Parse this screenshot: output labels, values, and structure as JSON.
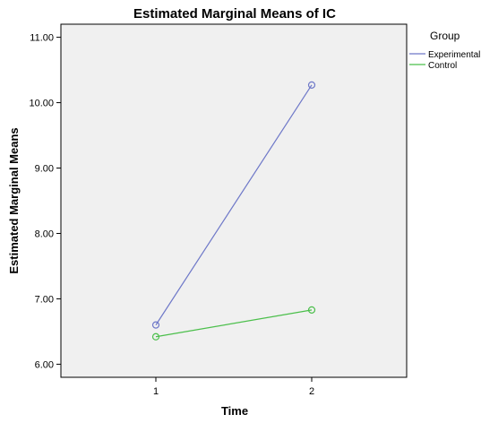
{
  "chart_data": {
    "type": "line",
    "title": "Estimated Marginal Means of IC",
    "xlabel": "Time",
    "ylabel": "Estimated Marginal Means",
    "categories": [
      "1",
      "2"
    ],
    "ylim": [
      5.8,
      11.2
    ],
    "yticks": [
      6,
      7,
      8,
      9,
      10,
      11
    ],
    "ytick_labels": [
      "6.00",
      "7.00",
      "8.00",
      "9.00",
      "10.00",
      "11.00"
    ],
    "grid": false,
    "legend": {
      "title": "Group",
      "placement": "right"
    },
    "series": [
      {
        "name": "Experimental",
        "values": [
          6.6,
          10.27
        ],
        "color": "#6e78c8"
      },
      {
        "name": "Control",
        "values": [
          6.42,
          6.83
        ],
        "color": "#4bbf4b"
      }
    ],
    "colors": {
      "plot_background": "#f0f0f0",
      "axis": "#000000"
    }
  }
}
